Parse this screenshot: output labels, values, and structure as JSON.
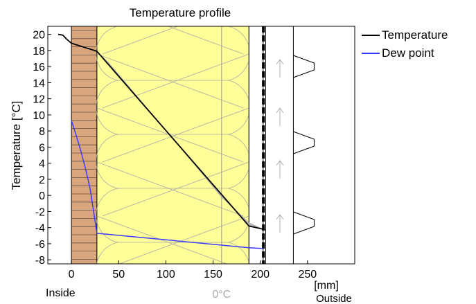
{
  "colors": {
    "temperature": "#000000",
    "dew_point": "#3b3bff",
    "brick": "#d9a57c",
    "insulation": "#ffff99",
    "uncertainty_band": "#bdbdbd",
    "zero_line": "#aaaaaa"
  },
  "chart_data": {
    "type": "line",
    "title": "Temperature profile",
    "ylabel": "Temperature  [°C]",
    "xlabel": "[mm]",
    "xlim": [
      -25,
      300
    ],
    "ylim": [
      -8.5,
      21
    ],
    "x_ticks": [
      0,
      50,
      100,
      150,
      200,
      250
    ],
    "y_ticks": [
      -8,
      -6,
      -4,
      -2,
      0,
      2,
      4,
      6,
      8,
      10,
      12,
      14,
      16,
      18,
      20
    ],
    "annotations": {
      "inside": "Inside",
      "outside": "Outside",
      "zero_c": "0°C"
    },
    "zero_c_position_mm": 159,
    "layers": [
      {
        "material": "brick",
        "from": 0,
        "to": 27
      },
      {
        "material": "mineral wool insulation",
        "from": 27,
        "to": 188
      },
      {
        "material": "air gap",
        "from": 188,
        "to": 203
      },
      {
        "material": "membrane",
        "from": 203,
        "to": 205
      },
      {
        "material": "ventilated cavity",
        "from": 205,
        "to": 235
      },
      {
        "material": "cladding",
        "from": 235,
        "to": 300
      }
    ],
    "series": [
      {
        "name": "Temperature",
        "color": "#000000",
        "points": [
          [
            -14,
            20
          ],
          [
            -9,
            19.9
          ],
          [
            -5,
            19.4
          ],
          [
            0,
            18.9
          ],
          [
            27,
            17.9
          ],
          [
            188,
            -3.8
          ],
          [
            203,
            -4.2
          ],
          [
            205,
            -4.3
          ]
        ]
      },
      {
        "name": "Dew point",
        "color": "#3b3bff",
        "points": [
          [
            0,
            9.3
          ],
          [
            5,
            7.5
          ],
          [
            10,
            5.5
          ],
          [
            15,
            3.3
          ],
          [
            20,
            0.7
          ],
          [
            27,
            -4.7
          ],
          [
            188,
            -6.5
          ],
          [
            203,
            -6.6
          ]
        ]
      }
    ],
    "band": {
      "upper": [
        [
          27,
          17.9
        ],
        [
          107,
          7.1
        ],
        [
          188,
          -3.8
        ],
        [
          203,
          -4.2
        ]
      ],
      "lower": [
        [
          27,
          17.9
        ],
        [
          40,
          16.4
        ],
        [
          107,
          7.1
        ],
        [
          159,
          -0.2
        ],
        [
          188,
          -3.4
        ],
        [
          203,
          -4.2
        ]
      ]
    },
    "legend_position": "top-right"
  }
}
